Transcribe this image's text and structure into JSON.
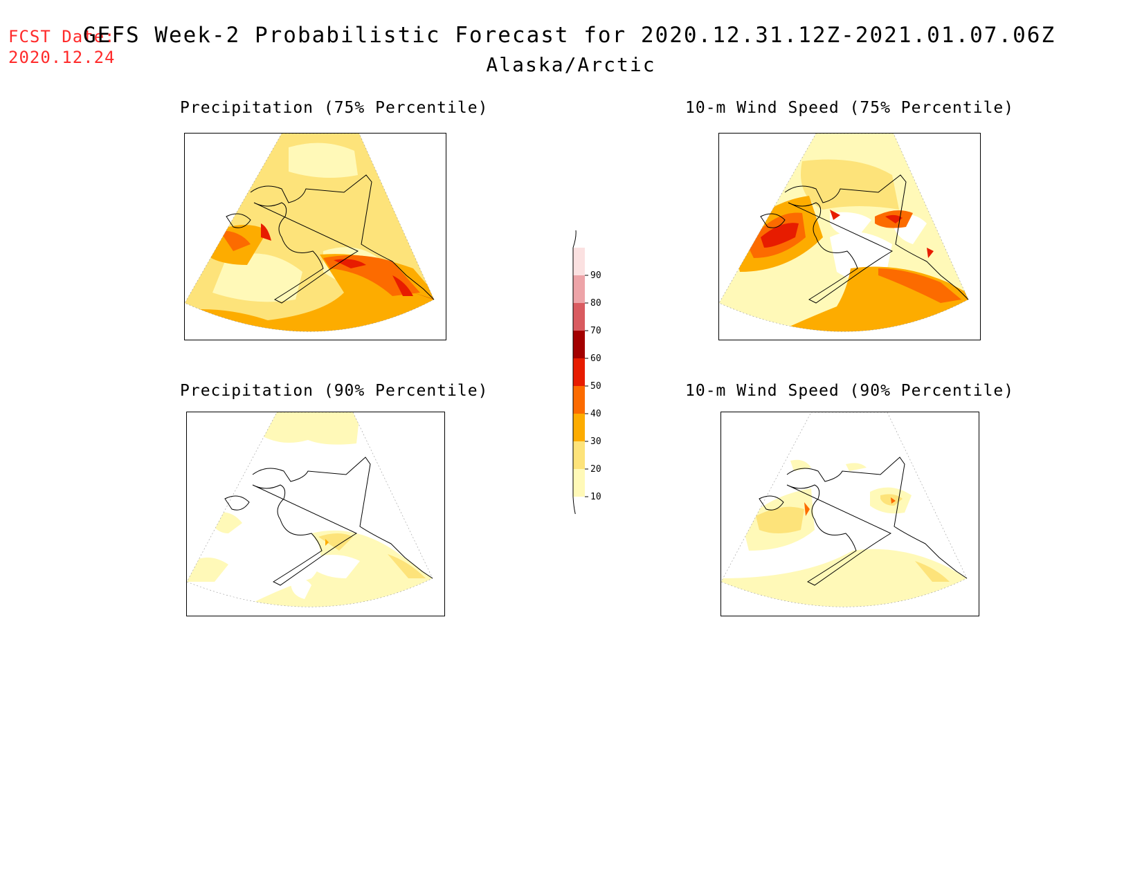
{
  "header": {
    "fcst_label": "FCST Date:",
    "fcst_date": "2020.12.24",
    "title": "GEFS Week-2 Probabilistic Forecast for 2020.12.31.12Z-2021.01.07.06Z",
    "region": "Alaska/Arctic"
  },
  "panels": [
    {
      "title": "Precipitation (75% Percentile)"
    },
    {
      "title": "10-m Wind Speed (75% Percentile)"
    },
    {
      "title": "Precipitation (90% Percentile)"
    },
    {
      "title": "10-m Wind Speed (90% Percentile)"
    }
  ],
  "colorbar": {
    "levels": [
      "10",
      "20",
      "30",
      "40",
      "50",
      "60",
      "70",
      "80",
      "90"
    ],
    "colors": [
      "#fff9b8",
      "#fde37a",
      "#fdac00",
      "#fc6b00",
      "#e71c00",
      "#a30000",
      "#d95b60",
      "#eda4a8",
      "#fbe1e1"
    ]
  }
}
